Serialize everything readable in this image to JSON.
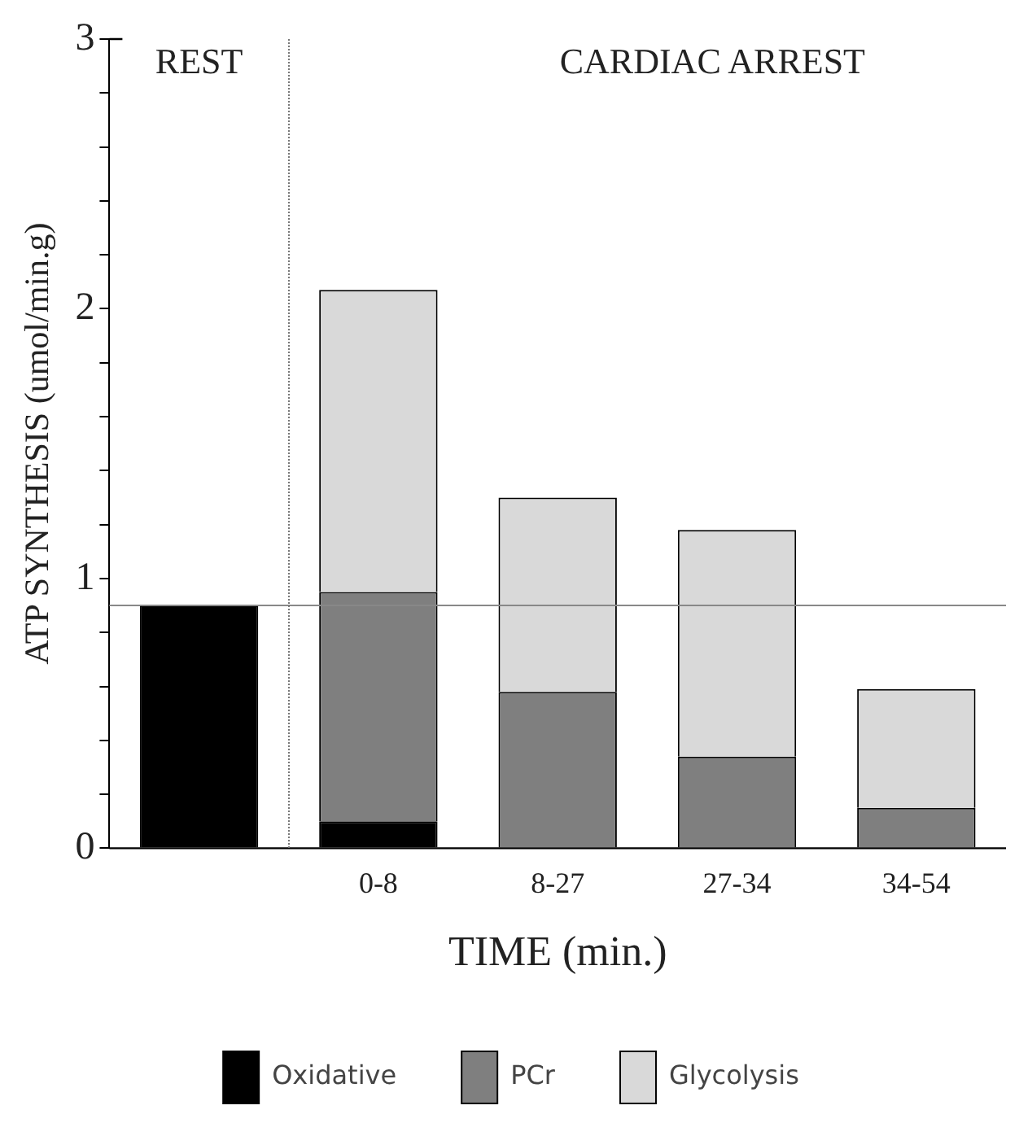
{
  "chart_data": {
    "type": "bar",
    "stacked": true,
    "xlabel": "TIME (min.)",
    "ylabel": "ATP SYNTHESIS (umol/min.g)",
    "categories": [
      null,
      "0-8",
      "8-27",
      "27-34",
      "34-54"
    ],
    "series": [
      {
        "name": "Oxidative",
        "color": "#000000",
        "values": [
          0.9,
          0.1,
          0,
          0,
          0
        ]
      },
      {
        "name": "PCr",
        "color": "#7f7f7f",
        "values": [
          0,
          0.85,
          0.58,
          0.34,
          0.15
        ]
      },
      {
        "name": "Glycolysis",
        "color": "#d9d9d9",
        "values": [
          0,
          1.12,
          0.72,
          0.84,
          0.44
        ]
      }
    ],
    "ylim": [
      0,
      3
    ],
    "yticks": [
      0,
      {
        "value": 0.2,
        "label": null
      },
      {
        "value": 0.4,
        "label": null
      },
      {
        "value": 0.6,
        "label": null
      },
      {
        "value": 0.8,
        "label": null
      },
      1,
      {
        "value": 1.2,
        "label": null
      },
      {
        "value": 1.4,
        "label": null
      },
      {
        "value": 1.6,
        "label": null
      },
      {
        "value": 1.8,
        "label": null
      },
      2,
      {
        "value": 2.2,
        "label": null
      },
      {
        "value": 2.4,
        "label": null
      },
      {
        "value": 2.6,
        "label": null
      },
      {
        "value": 2.8,
        "label": null
      },
      3
    ],
    "ref_lines": [
      {
        "axis": "y",
        "value": 0.9,
        "color": "#888888"
      }
    ],
    "annotations": [
      "REST",
      "CARDIAC ARREST"
    ],
    "legend": "bottom",
    "grid": false
  }
}
